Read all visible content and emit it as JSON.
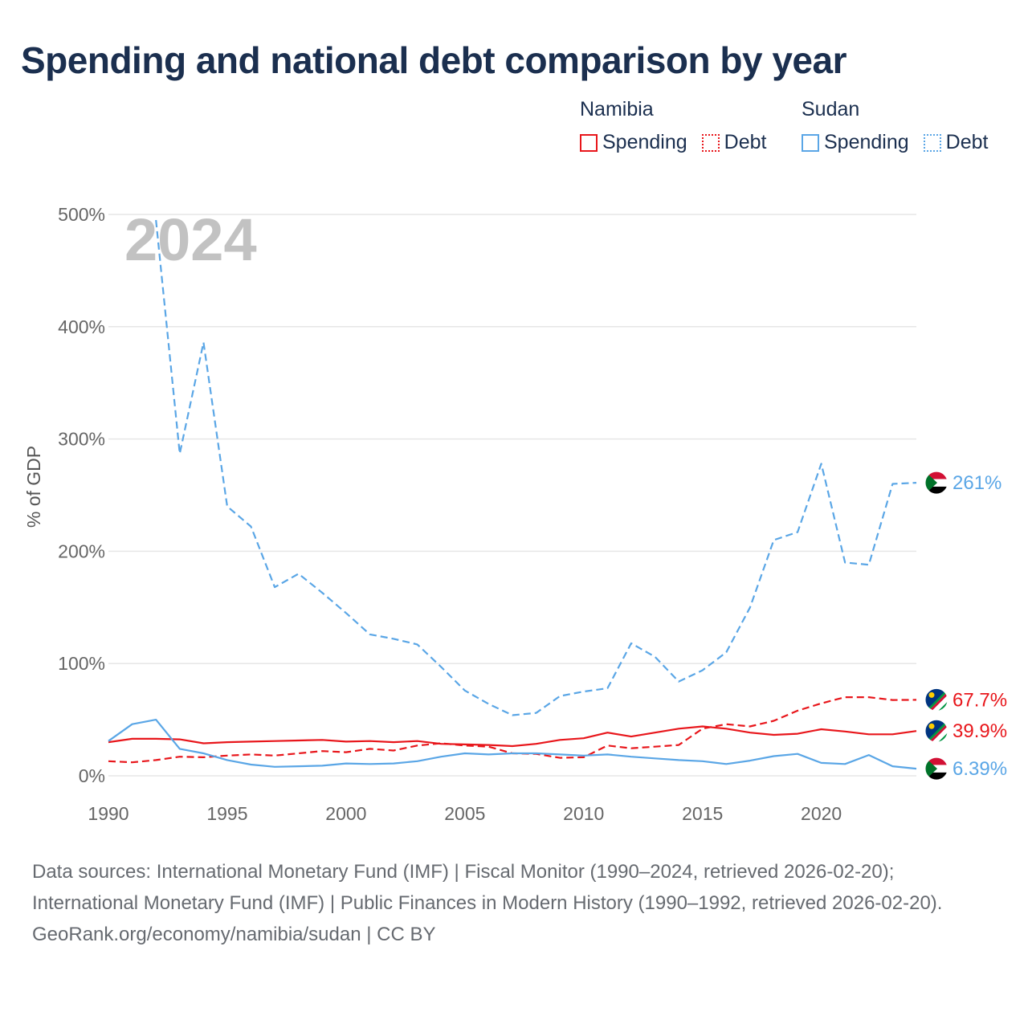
{
  "title": "Spending and national debt comparison by year",
  "legend": {
    "groups": [
      {
        "country": "Namibia",
        "items": [
          {
            "label": "Spending",
            "color": "#e8161b",
            "style": "solid"
          },
          {
            "label": "Debt",
            "color": "#e8161b",
            "style": "dotted"
          }
        ]
      },
      {
        "country": "Sudan",
        "items": [
          {
            "label": "Spending",
            "color": "#5aa6e6",
            "style": "solid"
          },
          {
            "label": "Debt",
            "color": "#5aa6e6",
            "style": "dotted"
          }
        ]
      }
    ]
  },
  "chart_data": {
    "type": "line",
    "current_year_label": "2024",
    "ylabel": "% of GDP",
    "ylim": [
      0,
      500
    ],
    "yticks": [
      0,
      100,
      200,
      300,
      400,
      500
    ],
    "ytick_labels": [
      "0%",
      "100%",
      "200%",
      "300%",
      "400%",
      "500%"
    ],
    "xlim": [
      1990,
      2024
    ],
    "xticks": [
      1990,
      1995,
      2000,
      2005,
      2010,
      2015,
      2020
    ],
    "x": [
      1990,
      1991,
      1992,
      1993,
      1994,
      1995,
      1996,
      1997,
      1998,
      1999,
      2000,
      2001,
      2002,
      2003,
      2004,
      2005,
      2006,
      2007,
      2008,
      2009,
      2010,
      2011,
      2012,
      2013,
      2014,
      2015,
      2016,
      2017,
      2018,
      2019,
      2020,
      2021,
      2022,
      2023,
      2024
    ],
    "series": [
      {
        "name": "Namibia Spending",
        "country": "Namibia",
        "kind": "Spending",
        "color": "#e8161b",
        "dash": "solid",
        "end_label": "39.9%",
        "values": [
          30,
          33,
          33,
          32.5,
          29,
          30,
          30.5,
          31,
          31.5,
          32,
          30.5,
          31,
          30,
          31,
          28.5,
          28,
          27.5,
          26.5,
          28.5,
          32,
          33.5,
          38.5,
          35,
          38.5,
          42,
          44,
          42,
          38.5,
          36.5,
          37.5,
          41.5,
          39.5,
          37,
          37,
          39.9
        ]
      },
      {
        "name": "Namibia Debt",
        "country": "Namibia",
        "kind": "Debt",
        "color": "#e8161b",
        "dash": "dashed",
        "end_label": "67.7%",
        "values": [
          13,
          12,
          14,
          17,
          16.5,
          18,
          19,
          18,
          20,
          22,
          21,
          24,
          22.5,
          27,
          29,
          27,
          26,
          20,
          19.5,
          16,
          16.5,
          27,
          24.5,
          26,
          27.5,
          42,
          46,
          44,
          49,
          58,
          64.5,
          70,
          70,
          67.5,
          67.7
        ]
      },
      {
        "name": "Sudan Spending",
        "country": "Sudan",
        "kind": "Spending",
        "color": "#5aa6e6",
        "dash": "solid",
        "end_label": "6.39%",
        "values": [
          31,
          46,
          50,
          24,
          20,
          14,
          10,
          8,
          8.5,
          9,
          11,
          10.5,
          11,
          13,
          17,
          20,
          19,
          20,
          20,
          19,
          18,
          19,
          17,
          15.5,
          14,
          13,
          10.5,
          13.5,
          17.5,
          19.5,
          11.5,
          10.5,
          18.5,
          8.5,
          6.39
        ]
      },
      {
        "name": "Sudan Debt",
        "country": "Sudan",
        "kind": "Debt",
        "color": "#5aa6e6",
        "dash": "dashed",
        "end_label": "261%",
        "values": [
          null,
          null,
          495,
          287,
          386,
          240,
          222,
          168,
          180,
          163,
          145,
          126,
          122,
          117,
          97,
          76,
          64,
          54,
          56,
          71,
          75,
          78,
          118,
          106,
          84,
          94,
          110,
          150,
          210,
          217,
          278,
          190,
          188,
          260,
          261
        ]
      }
    ]
  },
  "footer": {
    "sources": "Data sources: International Monetary Fund (IMF) | Fiscal Monitor (1990–2024, retrieved 2026-02-20); International Monetary Fund (IMF) | Public Finances in Modern History (1990–1992, retrieved 2026-02-20).",
    "credit": "GeoRank.org/economy/namibia/sudan | CC BY"
  }
}
